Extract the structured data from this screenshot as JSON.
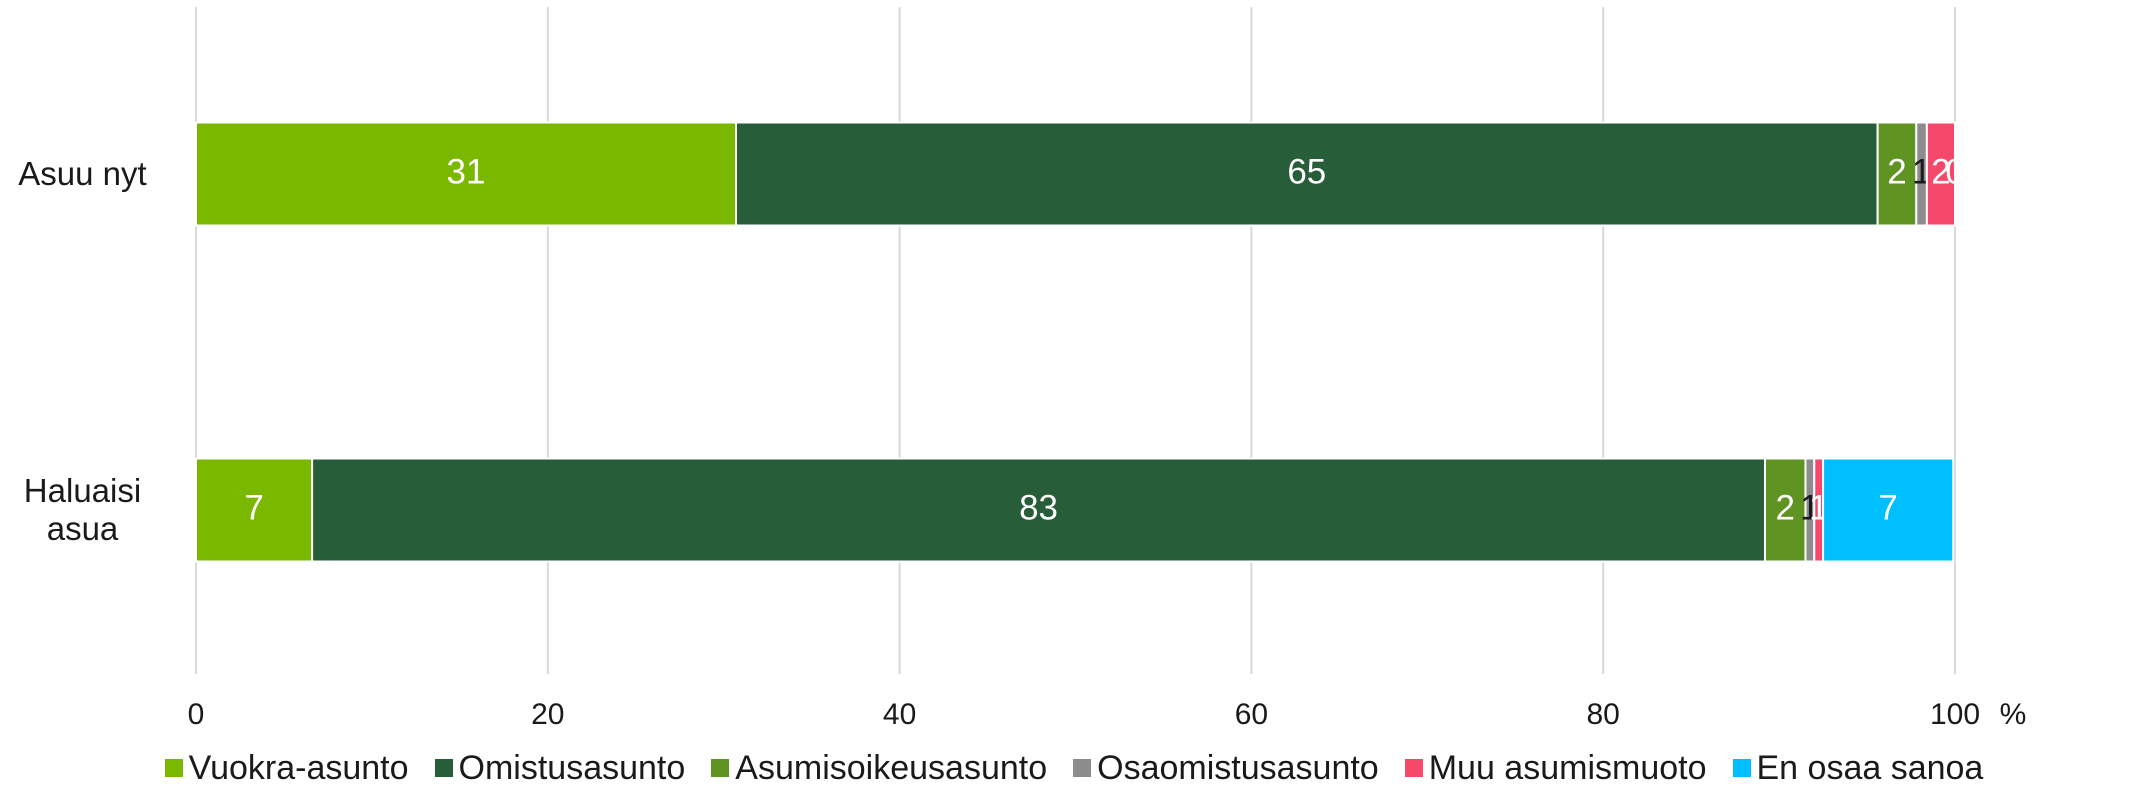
{
  "chart_data": {
    "type": "stacked-bar-horizontal",
    "categories": [
      "Asuu nyt",
      "Haluaisi asua"
    ],
    "series": [
      {
        "name": "Vuokra-asunto",
        "color": "#7ab800",
        "label_color": "#ffffff",
        "values": [
          30.7,
          6.6
        ],
        "value_labels": [
          "31",
          "7"
        ]
      },
      {
        "name": "Omistusasunto",
        "color": "#275d38",
        "label_color": "#ffffff",
        "values": [
          64.9,
          82.6
        ],
        "value_labels": [
          "65",
          "83"
        ]
      },
      {
        "name": "Asumisoikeusasunto",
        "color": "#5f9423",
        "label_color": "#ffffff",
        "values": [
          2.2,
          2.3
        ],
        "value_labels": [
          "2",
          "2"
        ]
      },
      {
        "name": "Osaomistusasunto",
        "color": "#8c8c8c",
        "label_color": "#1a1a1a",
        "values": [
          0.6,
          0.5
        ],
        "value_labels": [
          "1",
          "1"
        ]
      },
      {
        "name": "Muu asumismuoto",
        "color": "#f5486b",
        "label_color": "#ffffff",
        "values": [
          1.6,
          0.5
        ],
        "value_labels": [
          "2",
          "1"
        ]
      },
      {
        "name": "En osaa sanoa",
        "color": "#00bfff",
        "label_color": "#ffffff",
        "values": [
          0,
          7.4
        ],
        "value_labels": [
          "0",
          "7"
        ]
      }
    ],
    "xlabel": "%",
    "xlim": [
      0,
      100
    ],
    "xticks": [
      0,
      20,
      40,
      60,
      80,
      100
    ],
    "grid": true,
    "legend": "bottom"
  }
}
